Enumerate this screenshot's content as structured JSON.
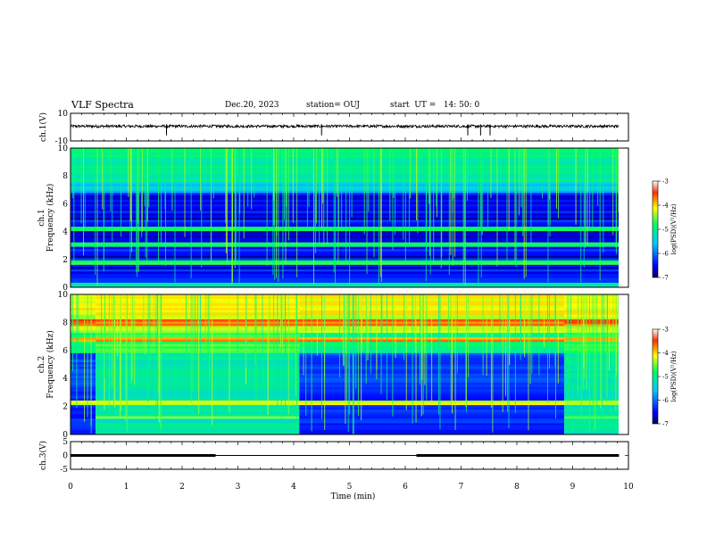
{
  "header": {
    "title": "VLF Spectra",
    "date": "Dec.20, 2023",
    "station": "station= OUJ",
    "start": "start  UT =   14: 50: 0"
  },
  "chart_data": [
    {
      "type": "line",
      "title": "",
      "ylabel": "ch.1(V)",
      "ylim": [
        -10,
        10
      ],
      "yticks": [
        10,
        -10
      ],
      "xlim": [
        0,
        10
      ],
      "description_values": {
        "baseline_V": 0,
        "noise_amplitude_V": 1.0
      },
      "spikes_min": [
        1.72,
        4.5,
        7.12,
        7.35,
        7.52
      ]
    },
    {
      "type": "heatmap",
      "ylabel": "ch.1  Frequency (kHz)",
      "ylim": [
        0,
        10
      ],
      "yticks": [
        0,
        2,
        4,
        6,
        8,
        10
      ],
      "xlim": [
        0,
        10
      ],
      "colorbar": {
        "label": "log(PSD)(V²/Hz)",
        "range": [
          -7,
          -3
        ],
        "ticks": [
          -3,
          -4,
          -5,
          -6,
          -7
        ]
      }
    },
    {
      "type": "heatmap",
      "ylabel": "ch.2  Frequency (kHz)",
      "ylim": [
        0,
        10
      ],
      "yticks": [
        0,
        2,
        4,
        6,
        8,
        10
      ],
      "xlim": [
        0,
        10
      ],
      "colorbar": {
        "label": "log(PSD)(V²/Hz)",
        "range": [
          -7,
          -3
        ],
        "ticks": [
          -3,
          -4,
          -5,
          -6,
          -7
        ]
      }
    },
    {
      "type": "line",
      "ylabel": "ch.3(V)",
      "ylim": [
        -5,
        5
      ],
      "yticks": [
        5,
        0,
        -5
      ],
      "xlim": [
        0,
        10
      ],
      "xlabel": "Time  (min)",
      "xticks": [
        0,
        1,
        2,
        3,
        4,
        5,
        6,
        7,
        8,
        9,
        10
      ],
      "segments": [
        {
          "x0": 0.0,
          "x1": 2.6,
          "level": 0.0,
          "thick": true
        },
        {
          "x0": 2.6,
          "x1": 6.2,
          "level": 0.0,
          "thick": false
        },
        {
          "x0": 6.2,
          "x1": 9.83,
          "level": 0.0,
          "thick": true
        }
      ]
    }
  ]
}
